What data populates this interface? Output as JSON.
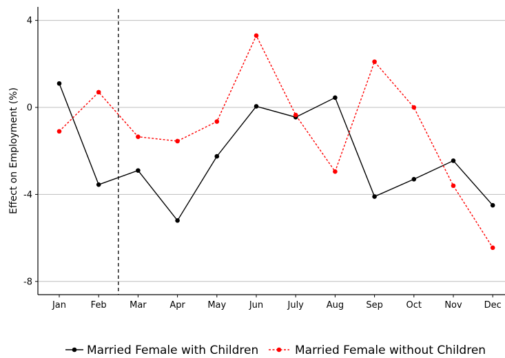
{
  "chart_data": {
    "type": "line",
    "title": "",
    "xlabel": "",
    "ylabel": "Effect on Employment (%)",
    "categories": [
      "Jan",
      "Feb",
      "Mar",
      "Apr",
      "May",
      "Jun",
      "July",
      "Aug",
      "Sep",
      "Oct",
      "Nov",
      "Dec"
    ],
    "yticks": [
      4,
      0,
      -4,
      -8
    ],
    "ylim": [
      -8.6,
      4.4
    ],
    "vline_after_category": "Feb",
    "grid": "horizontal",
    "legend_position": "bottom",
    "series": [
      {
        "name": "Married Female with Children",
        "color": "#000000",
        "style": "solid",
        "values": [
          1.1,
          -3.55,
          -2.9,
          -5.2,
          -2.25,
          0.05,
          -0.45,
          0.45,
          -4.1,
          -3.3,
          -2.45,
          -4.5
        ]
      },
      {
        "name": "Married Female without Children",
        "color": "#ff0000",
        "style": "dotted",
        "values": [
          -1.1,
          0.7,
          -1.35,
          -1.55,
          -0.65,
          3.3,
          -0.35,
          -2.95,
          2.1,
          0.0,
          -3.6,
          -6.45
        ]
      }
    ]
  }
}
